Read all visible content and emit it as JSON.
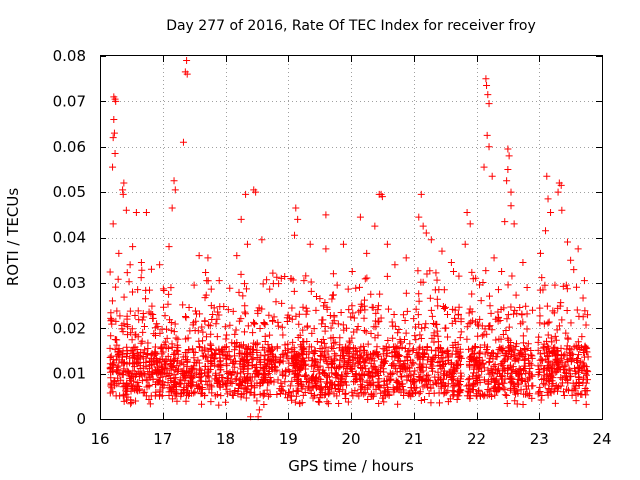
{
  "chart_data": {
    "type": "scatter",
    "title": "Day 277 of 2016, Rate Of TEC Index for receiver froy",
    "xlabel": "GPS time / hours",
    "ylabel": "ROTI / TECUs",
    "xlim": [
      16,
      24
    ],
    "ylim": [
      0,
      0.08
    ],
    "grid": true,
    "marker": "+",
    "color": "#ff0000",
    "xticks": [
      16,
      17,
      18,
      19,
      20,
      21,
      22,
      23,
      24
    ],
    "xtick_labels": [
      "16",
      "17",
      "18",
      "19",
      "20",
      "21",
      "22",
      "23",
      "24"
    ],
    "yticks": [
      0,
      0.01,
      0.02,
      0.03,
      0.04,
      0.05,
      0.06,
      0.07,
      0.08
    ],
    "ytick_labels": [
      "0",
      "0.01",
      "0.02",
      "0.03",
      "0.04",
      "0.05",
      "0.06",
      "0.07",
      "0.08"
    ],
    "series": [
      {
        "name": "ROTI",
        "points": [
          [
            16.22,
            0.071
          ],
          [
            16.24,
            0.0705
          ],
          [
            16.25,
            0.07
          ],
          [
            16.22,
            0.066
          ],
          [
            16.23,
            0.063
          ],
          [
            16.21,
            0.062
          ],
          [
            16.24,
            0.0585
          ],
          [
            16.2,
            0.0555
          ],
          [
            16.38,
            0.052
          ],
          [
            16.36,
            0.0505
          ],
          [
            16.37,
            0.0495
          ],
          [
            16.42,
            0.046
          ],
          [
            16.58,
            0.0455
          ],
          [
            16.74,
            0.0455
          ],
          [
            16.21,
            0.043
          ],
          [
            16.52,
            0.038
          ],
          [
            16.3,
            0.0365
          ],
          [
            16.48,
            0.034
          ],
          [
            16.66,
            0.0345
          ],
          [
            16.82,
            0.033
          ],
          [
            16.95,
            0.034
          ],
          [
            16.6,
            0.0285
          ],
          [
            17.1,
            0.038
          ],
          [
            17.15,
            0.0465
          ],
          [
            17.18,
            0.0525
          ],
          [
            17.2,
            0.0505
          ],
          [
            17.38,
            0.079
          ],
          [
            17.36,
            0.0765
          ],
          [
            17.39,
            0.076
          ],
          [
            17.33,
            0.061
          ],
          [
            17.58,
            0.036
          ],
          [
            17.72,
            0.0355
          ],
          [
            17.5,
            0.0295
          ],
          [
            17.9,
            0.0305
          ],
          [
            17.82,
            0.0245
          ],
          [
            18.32,
            0.0495
          ],
          [
            18.45,
            0.0505
          ],
          [
            18.48,
            0.05
          ],
          [
            18.25,
            0.044
          ],
          [
            18.58,
            0.0395
          ],
          [
            18.35,
            0.0385
          ],
          [
            18.18,
            0.036
          ],
          [
            18.52,
            0.0005
          ],
          [
            18.54,
            0.002
          ],
          [
            18.5,
            0.004
          ],
          [
            18.4,
            0.0005
          ],
          [
            19.12,
            0.0465
          ],
          [
            19.15,
            0.044
          ],
          [
            19.1,
            0.0405
          ],
          [
            19.35,
            0.0385
          ],
          [
            19.6,
            0.0375
          ],
          [
            19.6,
            0.045
          ],
          [
            19.88,
            0.0385
          ],
          [
            19.72,
            0.032
          ],
          [
            19.45,
            0.027
          ],
          [
            19.25,
            0.0305
          ],
          [
            19.78,
            0.0295
          ],
          [
            20.15,
            0.0445
          ],
          [
            20.45,
            0.0495
          ],
          [
            20.5,
            0.049
          ],
          [
            20.48,
            0.0495
          ],
          [
            20.38,
            0.0425
          ],
          [
            20.58,
            0.0385
          ],
          [
            20.25,
            0.0365
          ],
          [
            20.02,
            0.0325
          ],
          [
            20.7,
            0.034
          ],
          [
            20.88,
            0.0355
          ],
          [
            21.12,
            0.0495
          ],
          [
            21.08,
            0.0445
          ],
          [
            21.15,
            0.0425
          ],
          [
            21.2,
            0.041
          ],
          [
            21.28,
            0.0395
          ],
          [
            21.45,
            0.037
          ],
          [
            21.6,
            0.0345
          ],
          [
            21.4,
            0.0285
          ],
          [
            21.72,
            0.0315
          ],
          [
            21.85,
            0.0455
          ],
          [
            21.9,
            0.043
          ],
          [
            21.82,
            0.0385
          ],
          [
            22.15,
            0.075
          ],
          [
            22.16,
            0.0735
          ],
          [
            22.18,
            0.0715
          ],
          [
            22.2,
            0.0695
          ],
          [
            22.17,
            0.0625
          ],
          [
            22.2,
            0.06
          ],
          [
            22.12,
            0.0555
          ],
          [
            22.25,
            0.0535
          ],
          [
            22.5,
            0.0595
          ],
          [
            22.52,
            0.058
          ],
          [
            22.5,
            0.055
          ],
          [
            22.48,
            0.0525
          ],
          [
            22.55,
            0.05
          ],
          [
            22.55,
            0.047
          ],
          [
            22.45,
            0.0435
          ],
          [
            22.6,
            0.043
          ],
          [
            22.28,
            0.0355
          ],
          [
            22.4,
            0.0325
          ],
          [
            22.74,
            0.0345
          ],
          [
            22.35,
            0.0285
          ],
          [
            23.12,
            0.0535
          ],
          [
            23.32,
            0.052
          ],
          [
            23.3,
            0.05
          ],
          [
            23.35,
            0.0515
          ],
          [
            23.14,
            0.0485
          ],
          [
            23.18,
            0.0455
          ],
          [
            23.36,
            0.046
          ],
          [
            23.1,
            0.0415
          ],
          [
            23.45,
            0.039
          ],
          [
            23.62,
            0.0375
          ],
          [
            23.5,
            0.035
          ],
          [
            23.02,
            0.0365
          ],
          [
            23.72,
            0.0305
          ],
          [
            23.25,
            0.0295
          ]
        ]
      }
    ]
  }
}
